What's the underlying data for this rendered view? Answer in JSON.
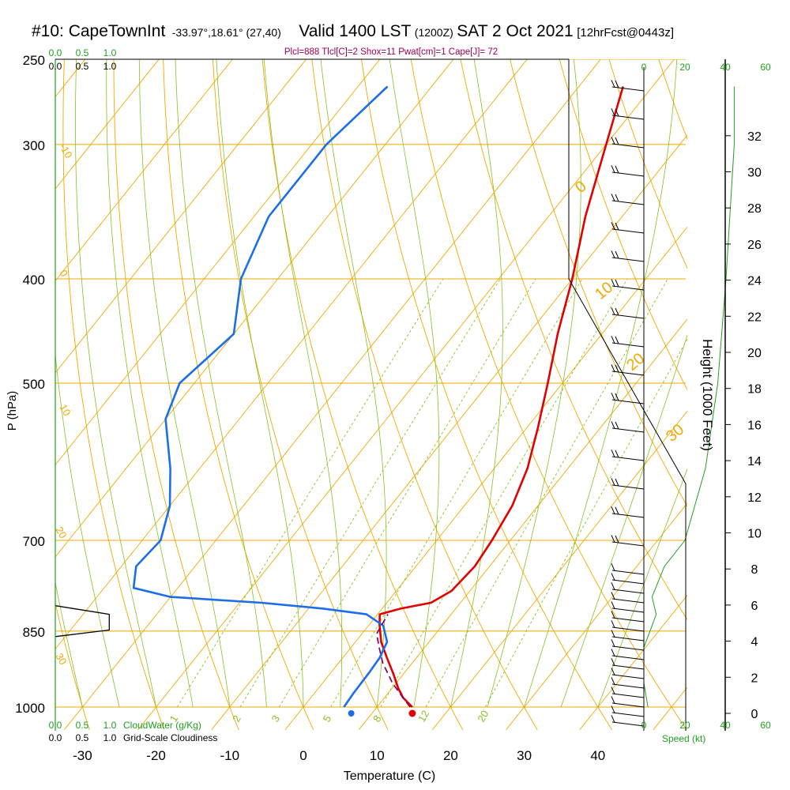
{
  "header": {
    "station": "#10: CapeTownInt",
    "coords": "-33.97°,18.61° (27,40)",
    "valid": "Valid 1400 LST",
    "zulu": "(1200Z)",
    "date": "SAT 2 Oct 2021",
    "forecast": "[12hrFcst@0443z]"
  },
  "indices": "Plcl=888 Tlcl[C]=2 Shox=11 Pwat[cm]=1 Cape[J]= 72",
  "colors": {
    "isotherm": "#f0a800",
    "dry_adiabat": "#f0a800",
    "moist_adiabat": "#88c020",
    "mixing_ratio": "#88c020",
    "temperature": "#e00000",
    "dewpoint": "#1c6ee8",
    "parcel": "#800060",
    "green_text": "#20a020",
    "indices_text": "#a00050"
  },
  "chart_data": {
    "type": "line",
    "title": "Valid 1400 LST (1200Z) SAT 2 Oct 2021",
    "xlabel": "Temperature (C)",
    "ylabel": "P (hPa)",
    "y2label": "Height (1000 Feet)",
    "x_ticks": [
      -30,
      -20,
      -10,
      0,
      10,
      20,
      30,
      40
    ],
    "p_ticks": [
      250,
      300,
      400,
      500,
      700,
      850,
      1000
    ],
    "height_ticks": [
      0,
      2,
      4,
      6,
      8,
      10,
      12,
      14,
      16,
      18,
      20,
      22,
      24,
      26,
      28,
      30,
      32
    ],
    "isotherm_labels": [
      "-10",
      "0",
      "10",
      "20",
      "30",
      "0",
      "10",
      "20",
      "30"
    ],
    "mixing_ratio_labels": [
      "1",
      "2",
      "3",
      "5",
      "8",
      "12",
      "20"
    ],
    "cloud_scale": [
      "0.0",
      "0.5",
      "1.0"
    ],
    "cloudwater_label": "CloudWater (g/Kg)",
    "cloudiness_label": "Grid-Scale Cloudiness",
    "speed_ticks": [
      "0",
      "20",
      "40",
      "60"
    ],
    "speed_label": "Speed (kt)",
    "series": [
      {
        "role": "temperature",
        "points": [
          [
            14.8,
            1000
          ],
          [
            12.5,
            980
          ],
          [
            10.8,
            960
          ],
          [
            8.5,
            930
          ],
          [
            6,
            900
          ],
          [
            3.5,
            870
          ],
          [
            1.5,
            840
          ],
          [
            0.3,
            820
          ],
          [
            2.5,
            810
          ],
          [
            6,
            800
          ],
          [
            7.5,
            780
          ],
          [
            8,
            740
          ],
          [
            7.5,
            700
          ],
          [
            6.5,
            650
          ],
          [
            4.5,
            600
          ],
          [
            1.5,
            550
          ],
          [
            -2,
            500
          ],
          [
            -6,
            450
          ],
          [
            -10,
            400
          ],
          [
            -15,
            350
          ],
          [
            -20,
            300
          ],
          [
            -24,
            265
          ]
        ]
      },
      {
        "role": "dewpoint",
        "points": [
          [
            5.5,
            1000
          ],
          [
            5.3,
            970
          ],
          [
            5.2,
            930
          ],
          [
            5,
            900
          ],
          [
            4.3,
            870
          ],
          [
            2,
            840
          ],
          [
            -1.5,
            820
          ],
          [
            -8,
            810
          ],
          [
            -17,
            800
          ],
          [
            -30,
            790
          ],
          [
            -36,
            775
          ],
          [
            -38,
            740
          ],
          [
            -37.5,
            700
          ],
          [
            -40,
            650
          ],
          [
            -44,
            600
          ],
          [
            -50,
            540
          ],
          [
            -52,
            500
          ],
          [
            -50,
            450
          ],
          [
            -55,
            400
          ],
          [
            -58,
            350
          ],
          [
            -58,
            300
          ],
          [
            -56,
            265
          ]
        ]
      },
      {
        "role": "parcel",
        "points": [
          [
            14.5,
            1000
          ],
          [
            12,
            975
          ],
          [
            9.5,
            950
          ],
          [
            6,
            910
          ],
          [
            3.8,
            880
          ],
          [
            2,
            855
          ],
          [
            1.4,
            820
          ]
        ]
      },
      {
        "role": "cloudiness",
        "points": [
          [
            0,
            805
          ],
          [
            0.65,
            820
          ],
          [
            0.65,
            848
          ],
          [
            0,
            860
          ]
        ]
      },
      {
        "role": "wind_speed_profile",
        "points": [
          [
            1,
            1000
          ],
          [
            0,
            950
          ],
          [
            0,
            880
          ],
          [
            2,
            840
          ],
          [
            3,
            820
          ],
          [
            2,
            790
          ],
          [
            5,
            740
          ],
          [
            10,
            700
          ],
          [
            15,
            600
          ],
          [
            18,
            500
          ],
          [
            20,
            400
          ],
          [
            22,
            300
          ],
          [
            22,
            265
          ]
        ]
      }
    ],
    "surface_dewpoint_marker": 6.5,
    "surface_temperature_marker": 14.8
  }
}
